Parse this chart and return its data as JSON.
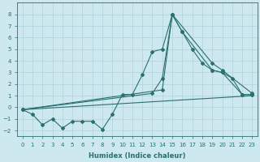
{
  "xlabel": "Humidex (Indice chaleur)",
  "background_color": "#cde8ee",
  "grid_color": "#b0d0d8",
  "line_color": "#2a7070",
  "xlim": [
    -0.5,
    23.5
  ],
  "ylim": [
    -2.5,
    9.0
  ],
  "yticks": [
    -2,
    -1,
    0,
    1,
    2,
    3,
    4,
    5,
    6,
    7,
    8
  ],
  "xticks": [
    0,
    1,
    2,
    3,
    4,
    5,
    6,
    7,
    8,
    9,
    10,
    11,
    12,
    13,
    14,
    15,
    16,
    17,
    18,
    19,
    20,
    21,
    22,
    23
  ],
  "line1_x": [
    0,
    1,
    2,
    3,
    4,
    5,
    6,
    7,
    8,
    9,
    10,
    11,
    12,
    13,
    14,
    15,
    16,
    17,
    18,
    19,
    20,
    21,
    22,
    23
  ],
  "line1_y": [
    -0.2,
    -0.6,
    -1.5,
    -1.0,
    -1.8,
    -1.2,
    -1.2,
    -1.2,
    -1.9,
    -0.6,
    1.1,
    1.1,
    2.8,
    4.8,
    5.0,
    8.0,
    6.5,
    5.0,
    3.8,
    3.2,
    3.0,
    2.5,
    1.1,
    1.1
  ],
  "line2_x": [
    0,
    13,
    14,
    15,
    16,
    19,
    20,
    22,
    23
  ],
  "line2_y": [
    -0.2,
    1.2,
    2.5,
    8.0,
    6.5,
    3.2,
    3.0,
    1.1,
    1.1
  ],
  "line3_x": [
    0,
    23
  ],
  "line3_y": [
    -0.2,
    1.0
  ],
  "line4_x": [
    0,
    14,
    15,
    19,
    20,
    23
  ],
  "line4_y": [
    -0.2,
    1.5,
    8.0,
    3.8,
    3.2,
    1.2
  ]
}
